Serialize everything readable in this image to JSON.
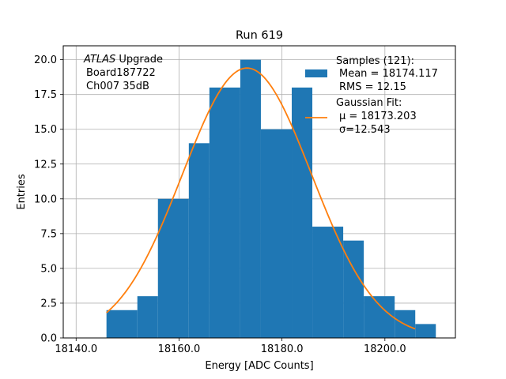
{
  "chart_data": {
    "type": "bar",
    "title": "Run 619",
    "xlabel": "Energy [ADC Counts]",
    "ylabel": "Entries",
    "xlim": [
      18137.5,
      18213.7
    ],
    "ylim": [
      0,
      21
    ],
    "x_ticks": [
      18140,
      18160,
      18180,
      18200
    ],
    "x_tick_labels": [
      "18140.0",
      "18160.0",
      "18180.0",
      "18200.0"
    ],
    "y_ticks": [
      0,
      2.5,
      5,
      7.5,
      10,
      12.5,
      15,
      17.5,
      20
    ],
    "y_tick_labels": [
      "0.0",
      "2.5",
      "5.0",
      "7.5",
      "10.0",
      "12.5",
      "15.0",
      "17.5",
      "20.0"
    ],
    "grid": true,
    "bin_edges": [
      18145.9,
      18151.9,
      18155.9,
      18161.9,
      18165.9,
      18171.9,
      18175.9,
      18181.9,
      18185.9,
      18191.9,
      18195.9,
      18201.9,
      18205.9,
      18209.9
    ],
    "counts": [
      2,
      3,
      10,
      14,
      18,
      20,
      15,
      18,
      8,
      7,
      3,
      2,
      1
    ],
    "hist_color": "#1f77b4",
    "fit": {
      "mu": 18173.203,
      "sigma": 12.543,
      "amplitude": 19.4,
      "x_range": [
        18145.9,
        18205.9
      ],
      "color": "#ff7f0e"
    },
    "annotation_lines": [
      "ATLAS",
      " Upgrade",
      "Board187722",
      "Ch007 35dB"
    ],
    "legend": {
      "position": "upper right",
      "hist_lines": [
        "Samples (121):",
        "Mean = 18174.117",
        "RMS = 12.15"
      ],
      "fit_lines": [
        "Gaussian Fit:",
        "μ = 18173.203",
        "σ=12.543"
      ]
    }
  }
}
